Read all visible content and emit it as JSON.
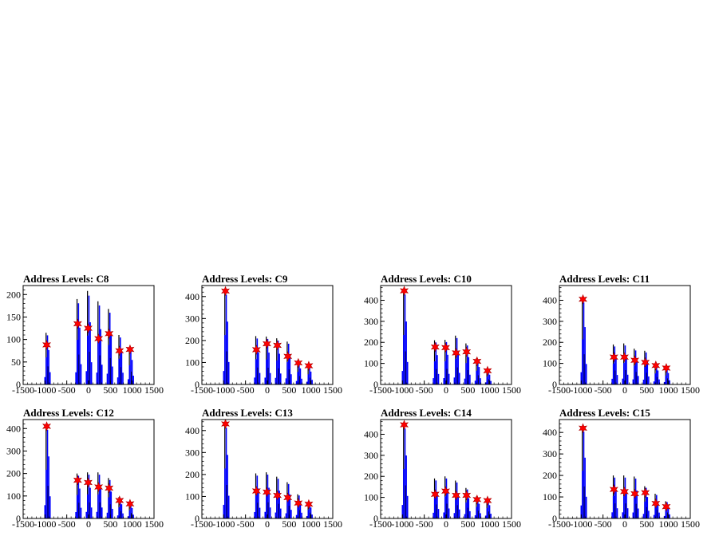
{
  "page": {
    "background": "#ffffff"
  },
  "style": {
    "frame_color": "#000000",
    "histogram_fill": "#0000ff",
    "histogram_outline": "#000000",
    "marker_color": "#ff0000",
    "marker_shape": "star"
  },
  "chart_data": [
    {
      "type": "bar",
      "title": "Address Levels: C8",
      "xlabel": "",
      "ylabel": "",
      "xlim": [
        -1500,
        1500
      ],
      "ylim": [
        0,
        220
      ],
      "x_ticks": [
        -1500,
        -1000,
        -500,
        0,
        500,
        1000,
        1500
      ],
      "y_ticks": [
        0,
        50,
        100,
        150,
        200
      ],
      "grid": false,
      "legend": "none",
      "peaks": [
        {
          "x": -960,
          "y": 88,
          "top": 115
        },
        {
          "x": -250,
          "y": 135,
          "top": 190
        },
        {
          "x": -10,
          "y": 125,
          "top": 208
        },
        {
          "x": 230,
          "y": 102,
          "top": 185
        },
        {
          "x": 470,
          "y": 113,
          "top": 168
        },
        {
          "x": 710,
          "y": 75,
          "top": 110
        },
        {
          "x": 950,
          "y": 78,
          "top": 82
        }
      ]
    },
    {
      "type": "bar",
      "title": "Address Levels: C9",
      "xlabel": "",
      "ylabel": "",
      "xlim": [
        -1500,
        1500
      ],
      "ylim": [
        0,
        450
      ],
      "x_ticks": [
        -1500,
        -1000,
        -500,
        0,
        500,
        1000,
        1500
      ],
      "y_ticks": [
        0,
        100,
        200,
        300,
        400
      ],
      "grid": false,
      "legend": "none",
      "peaks": [
        {
          "x": -960,
          "y": 425,
          "top": 430
        },
        {
          "x": -250,
          "y": 158,
          "top": 220
        },
        {
          "x": -10,
          "y": 185,
          "top": 218
        },
        {
          "x": 230,
          "y": 178,
          "top": 210
        },
        {
          "x": 470,
          "y": 128,
          "top": 195
        },
        {
          "x": 710,
          "y": 98,
          "top": 110
        },
        {
          "x": 950,
          "y": 85,
          "top": 88
        }
      ]
    },
    {
      "type": "bar",
      "title": "Address Levels: C10",
      "xlabel": "",
      "ylabel": "",
      "xlim": [
        -1500,
        1500
      ],
      "ylim": [
        0,
        470
      ],
      "x_ticks": [
        -1500,
        -1000,
        -500,
        0,
        500,
        1000,
        1500
      ],
      "y_ticks": [
        0,
        100,
        200,
        300,
        400
      ],
      "grid": false,
      "legend": "none",
      "peaks": [
        {
          "x": -960,
          "y": 445,
          "top": 450
        },
        {
          "x": -250,
          "y": 178,
          "top": 210
        },
        {
          "x": -10,
          "y": 175,
          "top": 212
        },
        {
          "x": 230,
          "y": 150,
          "top": 232
        },
        {
          "x": 470,
          "y": 155,
          "top": 195
        },
        {
          "x": 710,
          "y": 110,
          "top": 125
        },
        {
          "x": 950,
          "y": 65,
          "top": 70
        }
      ]
    },
    {
      "type": "bar",
      "title": "Address Levels: C11",
      "xlabel": "",
      "ylabel": "",
      "xlim": [
        -1500,
        1500
      ],
      "ylim": [
        0,
        470
      ],
      "x_ticks": [
        -1500,
        -1000,
        -500,
        0,
        500,
        1000,
        1500
      ],
      "y_ticks": [
        0,
        100,
        200,
        300,
        400
      ],
      "grid": false,
      "legend": "none",
      "peaks": [
        {
          "x": -960,
          "y": 405,
          "top": 410
        },
        {
          "x": -250,
          "y": 130,
          "top": 190
        },
        {
          "x": -10,
          "y": 130,
          "top": 195
        },
        {
          "x": 230,
          "y": 115,
          "top": 170
        },
        {
          "x": 470,
          "y": 105,
          "top": 160
        },
        {
          "x": 710,
          "y": 90,
          "top": 100
        },
        {
          "x": 950,
          "y": 78,
          "top": 82
        }
      ]
    },
    {
      "type": "bar",
      "title": "Address Levels: C12",
      "xlabel": "",
      "ylabel": "",
      "xlim": [
        -1500,
        1500
      ],
      "ylim": [
        0,
        440
      ],
      "x_ticks": [
        -1500,
        -1000,
        -500,
        0,
        500,
        1000,
        1500
      ],
      "y_ticks": [
        0,
        100,
        200,
        300,
        400
      ],
      "grid": false,
      "legend": "none",
      "peaks": [
        {
          "x": -960,
          "y": 410,
          "top": 415
        },
        {
          "x": -250,
          "y": 170,
          "top": 200
        },
        {
          "x": -10,
          "y": 160,
          "top": 205
        },
        {
          "x": 230,
          "y": 140,
          "top": 205
        },
        {
          "x": 470,
          "y": 135,
          "top": 180
        },
        {
          "x": 710,
          "y": 80,
          "top": 95
        },
        {
          "x": 950,
          "y": 65,
          "top": 70
        }
      ]
    },
    {
      "type": "bar",
      "title": "Address Levels: C13",
      "xlabel": "",
      "ylabel": "",
      "xlim": [
        -1500,
        1500
      ],
      "ylim": [
        0,
        450
      ],
      "x_ticks": [
        -1500,
        -1000,
        -500,
        0,
        500,
        1000,
        1500
      ],
      "y_ticks": [
        0,
        100,
        200,
        300,
        400
      ],
      "grid": false,
      "legend": "none",
      "peaks": [
        {
          "x": -960,
          "y": 430,
          "top": 435
        },
        {
          "x": -250,
          "y": 125,
          "top": 205
        },
        {
          "x": -10,
          "y": 120,
          "top": 210
        },
        {
          "x": 230,
          "y": 105,
          "top": 190
        },
        {
          "x": 470,
          "y": 95,
          "top": 165
        },
        {
          "x": 710,
          "y": 70,
          "top": 110
        },
        {
          "x": 950,
          "y": 65,
          "top": 75
        }
      ]
    },
    {
      "type": "bar",
      "title": "Address Levels: C14",
      "xlabel": "",
      "ylabel": "",
      "xlim": [
        -1500,
        1500
      ],
      "ylim": [
        0,
        470
      ],
      "x_ticks": [
        -1500,
        -1000,
        -500,
        0,
        500,
        1000,
        1500
      ],
      "y_ticks": [
        0,
        100,
        200,
        300,
        400
      ],
      "grid": false,
      "legend": "none",
      "peaks": [
        {
          "x": -960,
          "y": 445,
          "top": 450
        },
        {
          "x": -250,
          "y": 115,
          "top": 190
        },
        {
          "x": -10,
          "y": 130,
          "top": 200
        },
        {
          "x": 230,
          "y": 110,
          "top": 180
        },
        {
          "x": 470,
          "y": 110,
          "top": 145
        },
        {
          "x": 710,
          "y": 90,
          "top": 105
        },
        {
          "x": 950,
          "y": 85,
          "top": 95
        }
      ]
    },
    {
      "type": "bar",
      "title": "Address Levels: C15",
      "xlabel": "",
      "ylabel": "",
      "xlim": [
        -1500,
        1500
      ],
      "ylim": [
        0,
        460
      ],
      "x_ticks": [
        -1500,
        -1000,
        -500,
        0,
        500,
        1000,
        1500
      ],
      "y_ticks": [
        0,
        100,
        200,
        300,
        400
      ],
      "grid": false,
      "legend": "none",
      "peaks": [
        {
          "x": -960,
          "y": 420,
          "top": 425
        },
        {
          "x": -250,
          "y": 135,
          "top": 200
        },
        {
          "x": -10,
          "y": 125,
          "top": 200
        },
        {
          "x": 230,
          "y": 115,
          "top": 195
        },
        {
          "x": 470,
          "y": 120,
          "top": 150
        },
        {
          "x": 710,
          "y": 70,
          "top": 115
        },
        {
          "x": 950,
          "y": 55,
          "top": 80
        }
      ]
    }
  ]
}
